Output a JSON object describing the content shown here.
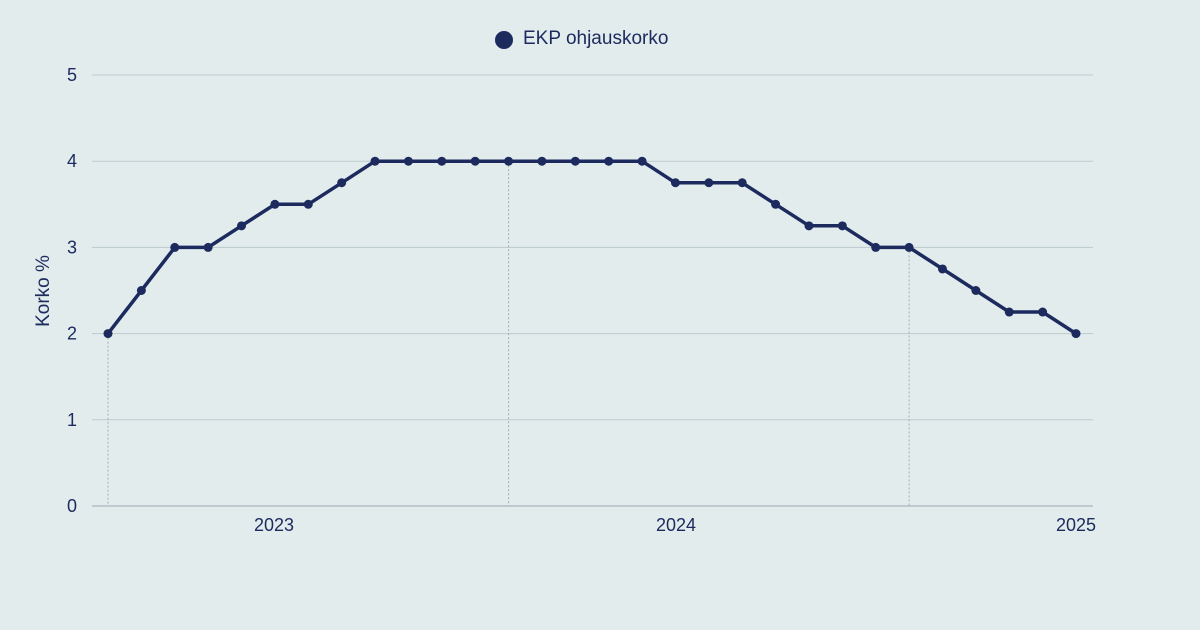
{
  "chart_data": {
    "type": "line",
    "title": "",
    "xlabel": "",
    "ylabel": "Korko %",
    "ylim": [
      0,
      5
    ],
    "yticks": [
      "0",
      "1",
      "2",
      "3",
      "4",
      "5"
    ],
    "xticks": [
      "2023",
      "2024",
      "2025"
    ],
    "grid": true,
    "legend_position": "top-center",
    "series": [
      {
        "name": "EKP ohjauskorko",
        "color": "#1c2a5e",
        "values": [
          2.0,
          2.5,
          3.0,
          3.0,
          3.25,
          3.5,
          3.5,
          3.75,
          4.0,
          4.0,
          4.0,
          4.0,
          4.0,
          4.0,
          4.0,
          4.0,
          4.0,
          3.75,
          3.75,
          3.75,
          3.5,
          3.25,
          3.25,
          3.0,
          3.0,
          2.75,
          2.5,
          2.25,
          2.25,
          2.0
        ]
      }
    ]
  }
}
